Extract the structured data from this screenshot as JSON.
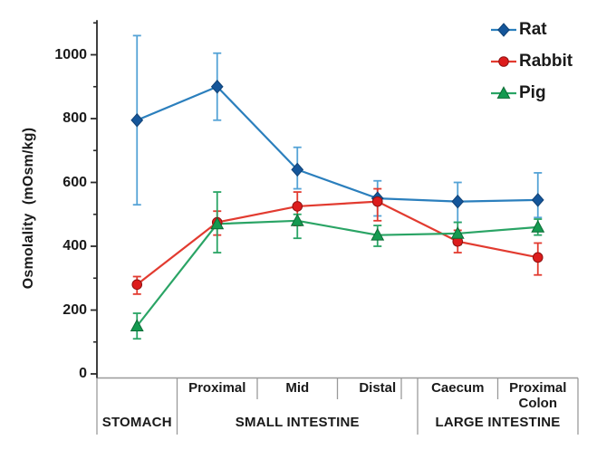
{
  "figure": {
    "background": "#ffffff",
    "text_color": "#1a1a1a",
    "axis_color": "#2b2b2b",
    "table_line_color": "#9a9a9a"
  },
  "chart_data": {
    "type": "line",
    "title": "",
    "xlabel": "",
    "ylabel": "Osmolality  (mOsm/kg)",
    "ylim": [
      0,
      1100
    ],
    "yticks": [
      0,
      200,
      400,
      600,
      800,
      1000
    ],
    "ytick_labels": [
      "0",
      "200",
      "400",
      "600",
      "800",
      "1000"
    ],
    "minor_ytick_step": 100,
    "grid": false,
    "legend_position": "top-right",
    "error_bars": true,
    "segment_labels": [
      "",
      "Proximal",
      "Mid",
      "Distal",
      "Caecum",
      "Proximal Colon"
    ],
    "group_labels": [
      "STOMACH",
      "SMALL INTESTINE",
      "LARGE INTESTINE"
    ],
    "categories": [
      "Stomach",
      "Small intestine Proximal",
      "Small intestine Mid",
      "Small intestine Distal",
      "Caecum",
      "Proximal Colon"
    ],
    "series": [
      {
        "name": "Rat",
        "marker": "diamond",
        "color": "#2b7fbd",
        "marker_color": "#15569a",
        "marker_edge": "#0f4175",
        "errbar_color": "#55a3d6",
        "values": [
          795,
          900,
          640,
          550,
          540,
          545
        ],
        "err_low": [
          530,
          795,
          580,
          495,
          475,
          490
        ],
        "err_high": [
          1060,
          1005,
          710,
          605,
          600,
          630
        ]
      },
      {
        "name": "Rabbit",
        "marker": "circle",
        "color": "#e23b30",
        "marker_color": "#dd1c1c",
        "marker_edge": "#8e1111",
        "errbar_color": "#e23b30",
        "values": [
          280,
          475,
          525,
          540,
          415,
          365
        ],
        "err_low": [
          250,
          435,
          465,
          480,
          380,
          310
        ],
        "err_high": [
          305,
          510,
          570,
          580,
          450,
          410
        ]
      },
      {
        "name": "Pig",
        "marker": "triangle",
        "color": "#2aa465",
        "marker_color": "#149a50",
        "marker_edge": "#0c6b35",
        "errbar_color": "#2aa465",
        "values": [
          150,
          470,
          480,
          435,
          440,
          460
        ],
        "err_low": [
          110,
          380,
          425,
          400,
          405,
          435
        ],
        "err_high": [
          190,
          570,
          500,
          465,
          475,
          485
        ]
      }
    ]
  }
}
